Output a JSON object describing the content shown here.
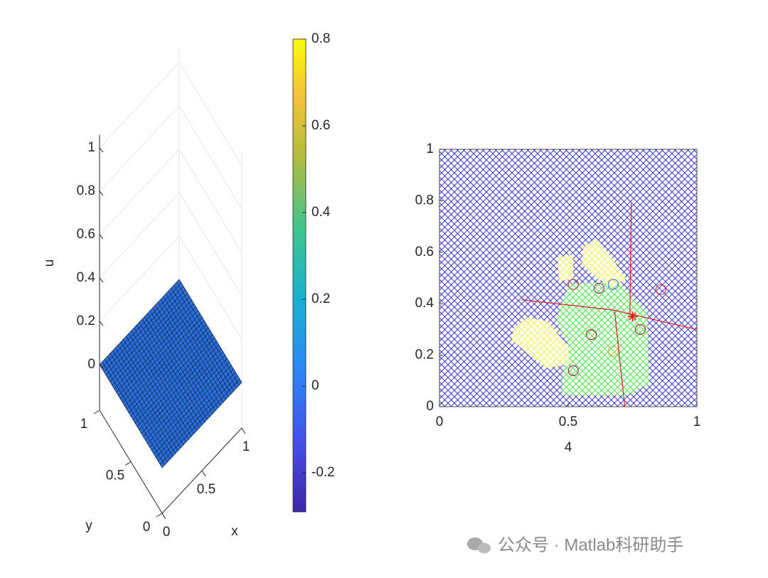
{
  "chart_data": [
    {
      "type": "surface",
      "xlabel": "x",
      "ylabel": "y",
      "zlabel": "u",
      "xlim": [
        0,
        1
      ],
      "ylim": [
        0,
        1
      ],
      "zlim": [
        -0.21,
        1.06
      ],
      "xticks": [
        0,
        0.5,
        1
      ],
      "yticks": [
        0,
        0.5,
        1
      ],
      "zticks": [
        0,
        0.2,
        0.4,
        0.6,
        0.8,
        1
      ],
      "color": "#2c6fdc",
      "grid": true
    },
    {
      "type": "colorbar",
      "clim": [
        -0.29,
        0.8
      ],
      "ticks": [
        -0.2,
        0,
        0.2,
        0.4,
        0.6,
        0.8
      ]
    },
    {
      "type": "scatter",
      "xlabel": "4",
      "xlim": [
        0,
        1
      ],
      "ylim": [
        0,
        1
      ],
      "xticks": [
        0,
        0.5,
        1
      ],
      "yticks": [
        0,
        0.2,
        0.4,
        0.6,
        0.8,
        1
      ],
      "circles": {
        "x": [
          0.52,
          0.62,
          0.86,
          0.59,
          0.78,
          0.52,
          0.675,
          0.675
        ],
        "y": [
          0.475,
          0.46,
          0.455,
          0.28,
          0.3,
          0.14,
          0.475,
          0.215
        ],
        "colors": [
          "#c0392b",
          "#b03060",
          "#d03040",
          "#a0302a",
          "#b03020",
          "#a02848",
          "#3a7fc0",
          "#d0b040"
        ]
      },
      "star": {
        "x": [
          0.75
        ],
        "y": [
          0.35
        ],
        "color": "#ff0000"
      },
      "lines": [
        {
          "x": [
            0.32,
            0.68
          ],
          "y": [
            0.415,
            0.375
          ]
        },
        {
          "x": [
            0.68,
            0.74
          ],
          "y": [
            0.375,
            0.36
          ]
        },
        {
          "x": [
            0.74,
            0.745
          ],
          "y": [
            0.36,
            0.79
          ]
        },
        {
          "x": [
            0.74,
            1
          ],
          "y": [
            0.36,
            0.3
          ]
        },
        {
          "x": [
            0.68,
            0.72
          ],
          "y": [
            0.375,
            0
          ]
        }
      ],
      "line_color": "#e02020"
    },
    {
      "type": "watermark",
      "text": "公众号 · Matlab科研助手"
    }
  ]
}
